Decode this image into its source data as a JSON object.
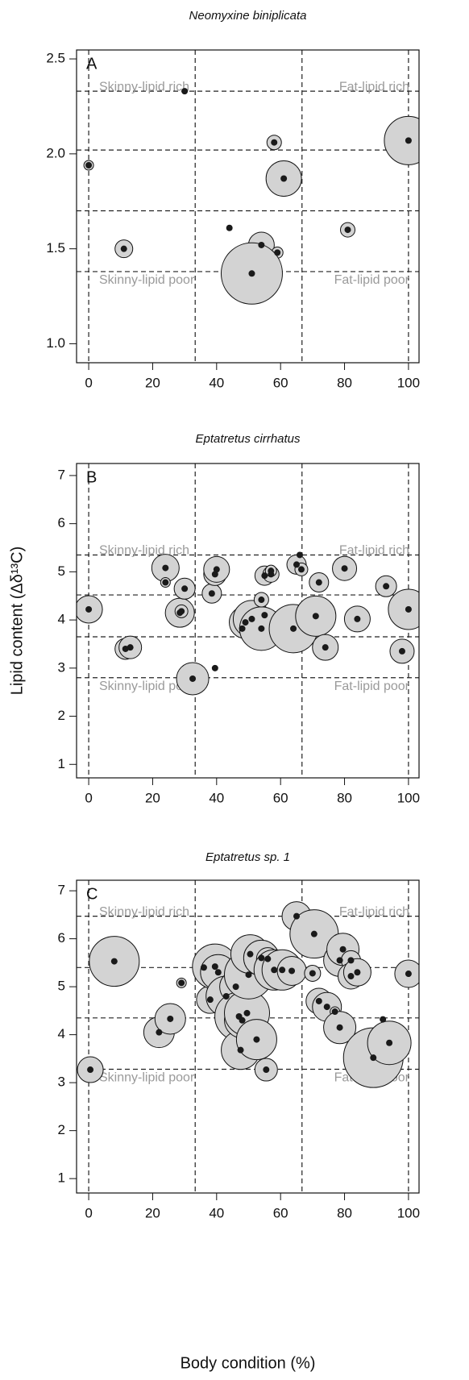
{
  "chart_data": [
    {
      "type": "scatter",
      "title": "Neomyxine biniplicata",
      "panel_label": "A",
      "x": [
        0,
        30,
        58,
        61,
        100,
        11,
        44,
        54,
        59,
        51,
        81
      ],
      "y": [
        1.94,
        2.33,
        2.06,
        1.87,
        2.07,
        1.5,
        1.61,
        1.52,
        1.48,
        1.37,
        1.6
      ],
      "sizes": [
        6,
        0,
        9,
        22,
        30,
        11,
        0,
        16,
        7,
        38,
        9
      ],
      "xlim": [
        -3.8,
        103.3
      ],
      "ylim": [
        0.9,
        2.547
      ],
      "xticks": [
        0,
        20,
        40,
        60,
        80,
        100
      ],
      "yticks": [
        {
          "value": 1.0,
          "label": "1.0"
        },
        1.5,
        {
          "value": 2.0,
          "label": "2.0"
        },
        2.5
      ],
      "vlines": [
        0,
        33.3,
        66.7,
        100
      ],
      "hlines": [
        2.33,
        2.02,
        1.7,
        1.38
      ],
      "quadrant_labels": [
        "Skinny-lipid rich",
        "Fat-lipid rich",
        "Skinny-lipid poor",
        "Fat-lipid poor"
      ],
      "color": "#d3d3d3",
      "point_color": "#1a1a1a"
    },
    {
      "type": "scatter",
      "title": "Eptatretus cirrhatus",
      "panel_label": "B",
      "ylabel": "Lipid content (Δδ¹³C)",
      "x": [
        0,
        11.5,
        13,
        24,
        24,
        28.5,
        29,
        30,
        32.5,
        38.5,
        39.5,
        40,
        39.5,
        48,
        49,
        51,
        54,
        54,
        55,
        55,
        57,
        57,
        64,
        65,
        66,
        66.5,
        71,
        72,
        74,
        80,
        84,
        93,
        98,
        100
      ],
      "y": [
        4.22,
        3.4,
        3.43,
        5.08,
        4.78,
        4.15,
        4.18,
        4.65,
        2.78,
        4.55,
        4.95,
        5.05,
        3.0,
        3.82,
        3.95,
        4.02,
        3.82,
        4.42,
        4.1,
        4.92,
        4.95,
        5.02,
        3.82,
        5.15,
        5.35,
        5.05,
        4.08,
        4.78,
        3.43,
        5.07,
        4.02,
        4.7,
        3.35,
        4.22
      ],
      "sizes": [
        17,
        13,
        14,
        17,
        6,
        18,
        8,
        13,
        20,
        12,
        14,
        16,
        0,
        8,
        20,
        23,
        27,
        9,
        0,
        12,
        10,
        7,
        30,
        12,
        0,
        8,
        25,
        12,
        16,
        15,
        16,
        13,
        15,
        25
      ],
      "xlim": [
        -3.8,
        103.3
      ],
      "ylim": [
        0.72,
        7.25
      ],
      "xticks": [
        0,
        20,
        40,
        60,
        80,
        100
      ],
      "yticks": [
        1,
        2,
        3,
        4,
        5,
        6,
        7
      ],
      "vlines": [
        0,
        33.3,
        66.7,
        100
      ],
      "hlines": [
        5.35,
        4.52,
        3.65,
        2.8
      ],
      "quadrant_labels": [
        "Skinny-lipid rich",
        "Fat-lipid rich",
        "Skinny-lipid poor",
        "Fat-lipid poor"
      ],
      "color": "#d3d3d3",
      "point_color": "#1a1a1a"
    },
    {
      "type": "scatter",
      "title": "Eptatretus sp. 1",
      "panel_label": "C",
      "xlabel": "Body condition (%)",
      "x": [
        0.5,
        8,
        22,
        25.5,
        29,
        36,
        38,
        39.5,
        40.5,
        43,
        46,
        47,
        47.5,
        48,
        49.5,
        50,
        50.5,
        52.5,
        54,
        55.5,
        56,
        58,
        60.5,
        63.5,
        65,
        70,
        70.5,
        72,
        74.5,
        77,
        78.5,
        78.5,
        79.5,
        82,
        82,
        84,
        89,
        92,
        94,
        100
      ],
      "y": [
        3.27,
        5.53,
        4.05,
        4.33,
        5.08,
        5.4,
        4.73,
        5.42,
        5.3,
        4.8,
        5.0,
        4.38,
        3.68,
        4.3,
        4.45,
        5.25,
        5.68,
        3.9,
        5.6,
        3.27,
        5.58,
        5.35,
        5.35,
        5.33,
        6.47,
        5.28,
        6.1,
        4.7,
        4.58,
        4.48,
        4.15,
        5.55,
        5.78,
        5.55,
        5.22,
        5.3,
        3.52,
        4.32,
        3.83,
        5.27
      ],
      "sizes": [
        16,
        31,
        19,
        19,
        6,
        12,
        17,
        28,
        22,
        25,
        20,
        30,
        24,
        22,
        28,
        30,
        24,
        25,
        22,
        14,
        14,
        25,
        25,
        18,
        18,
        10,
        30,
        16,
        18,
        6,
        20,
        20,
        20,
        12,
        16,
        17,
        37,
        0,
        27,
        17
      ],
      "xlim": [
        -3.8,
        103.3
      ],
      "ylim": [
        0.7,
        7.22
      ],
      "xticks": [
        0,
        20,
        40,
        60,
        80,
        100
      ],
      "yticks": [
        1,
        2,
        3,
        4,
        5,
        6,
        7
      ],
      "vlines": [
        0,
        33.3,
        66.7,
        100
      ],
      "hlines": [
        6.47,
        5.4,
        4.35,
        3.28
      ],
      "quadrant_labels": [
        "Skinny-lipid rich",
        "Fat-lipid rich",
        "Skinny-lipid poor",
        "Fat-lipid poor"
      ],
      "color": "#d3d3d3",
      "point_color": "#1a1a1a"
    }
  ]
}
